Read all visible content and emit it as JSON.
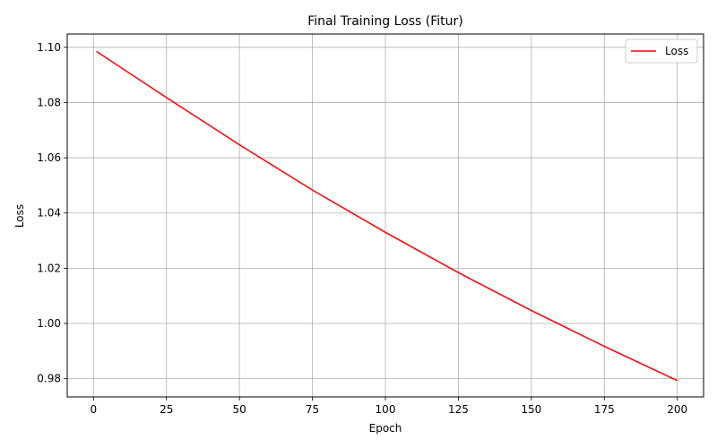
{
  "chart_data": {
    "type": "line",
    "title": "Final Training Loss (Fitur)",
    "xlabel": "Epoch",
    "ylabel": "Loss",
    "xlim": [
      -9,
      209
    ],
    "ylim": [
      0.9734,
      1.1048
    ],
    "xticks": [
      0,
      25,
      50,
      75,
      100,
      125,
      150,
      175,
      200
    ],
    "yticks": [
      0.98,
      1.0,
      1.02,
      1.04,
      1.06,
      1.08,
      1.1
    ],
    "grid": true,
    "legend_position": "top-right",
    "series": [
      {
        "name": "Loss",
        "color": "#ff0000",
        "x": [
          1,
          25,
          50,
          75,
          100,
          125,
          150,
          175,
          200
        ],
        "y": [
          1.0985,
          1.0818,
          1.0647,
          1.0483,
          1.033,
          1.0184,
          1.0047,
          0.9917,
          0.9793
        ]
      }
    ]
  }
}
